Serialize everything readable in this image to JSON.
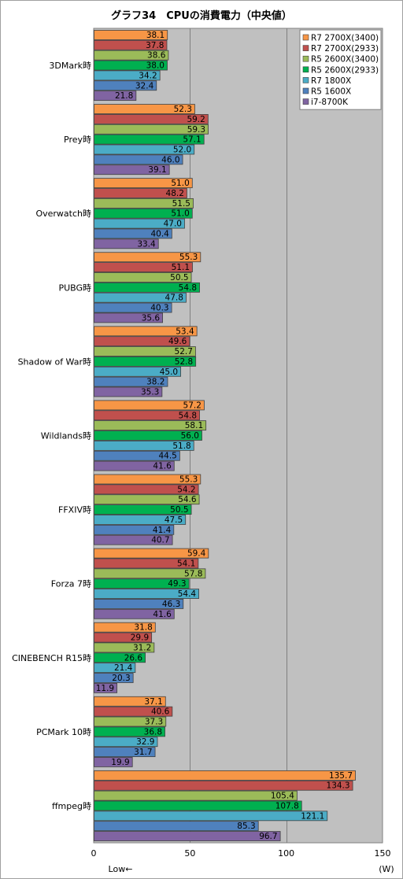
{
  "chart_data": {
    "type": "bar",
    "orientation": "horizontal",
    "title": "グラフ34　CPUの消費電力（中央値）",
    "xlabel_low": "Low←",
    "xunit": "(W)",
    "xlim": [
      0,
      150
    ],
    "xticks": [
      0,
      50,
      100,
      150
    ],
    "grid": true,
    "legend_position": "top-right",
    "categories": [
      "3DMark時",
      "Prey時",
      "Overwatch時",
      "PUBG時",
      "Shadow of War時",
      "Wildlands時",
      "FFXIV時",
      "Forza 7時",
      "CINEBENCH R15時",
      "PCMark 10時",
      "ffmpeg時"
    ],
    "series": [
      {
        "name": "R7 2700X(3400)",
        "color": "#f79646",
        "values": [
          38.1,
          52.3,
          51.0,
          55.3,
          53.4,
          57.2,
          55.3,
          59.4,
          31.8,
          37.1,
          135.7
        ]
      },
      {
        "name": "R7 2700X(2933)",
        "color": "#c0504d",
        "values": [
          37.8,
          59.2,
          48.2,
          51.1,
          49.6,
          54.8,
          54.2,
          54.1,
          29.9,
          40.6,
          134.3
        ]
      },
      {
        "name": "R5 2600X(3400)",
        "color": "#9bbb59",
        "values": [
          38.6,
          59.3,
          51.5,
          50.5,
          52.7,
          58.1,
          54.6,
          57.8,
          31.2,
          37.3,
          105.4
        ]
      },
      {
        "name": "R5 2600X(2933)",
        "color": "#00b050",
        "values": [
          38.0,
          57.1,
          51.0,
          54.8,
          52.8,
          56.0,
          50.5,
          49.3,
          26.6,
          36.8,
          107.8
        ]
      },
      {
        "name": "R7 1800X",
        "color": "#4bacc6",
        "values": [
          34.2,
          52.0,
          47.0,
          47.8,
          45.0,
          51.8,
          47.5,
          54.4,
          21.4,
          32.9,
          121.1
        ]
      },
      {
        "name": "R5 1600X",
        "color": "#4f81bd",
        "values": [
          32.4,
          46.0,
          40.4,
          40.3,
          38.2,
          44.5,
          41.4,
          46.3,
          20.3,
          31.7,
          85.3
        ]
      },
      {
        "name": "i7-8700K",
        "color": "#8064a2",
        "values": [
          21.8,
          39.1,
          33.4,
          35.6,
          35.3,
          41.6,
          40.7,
          41.6,
          11.9,
          19.9,
          96.7
        ]
      }
    ]
  }
}
